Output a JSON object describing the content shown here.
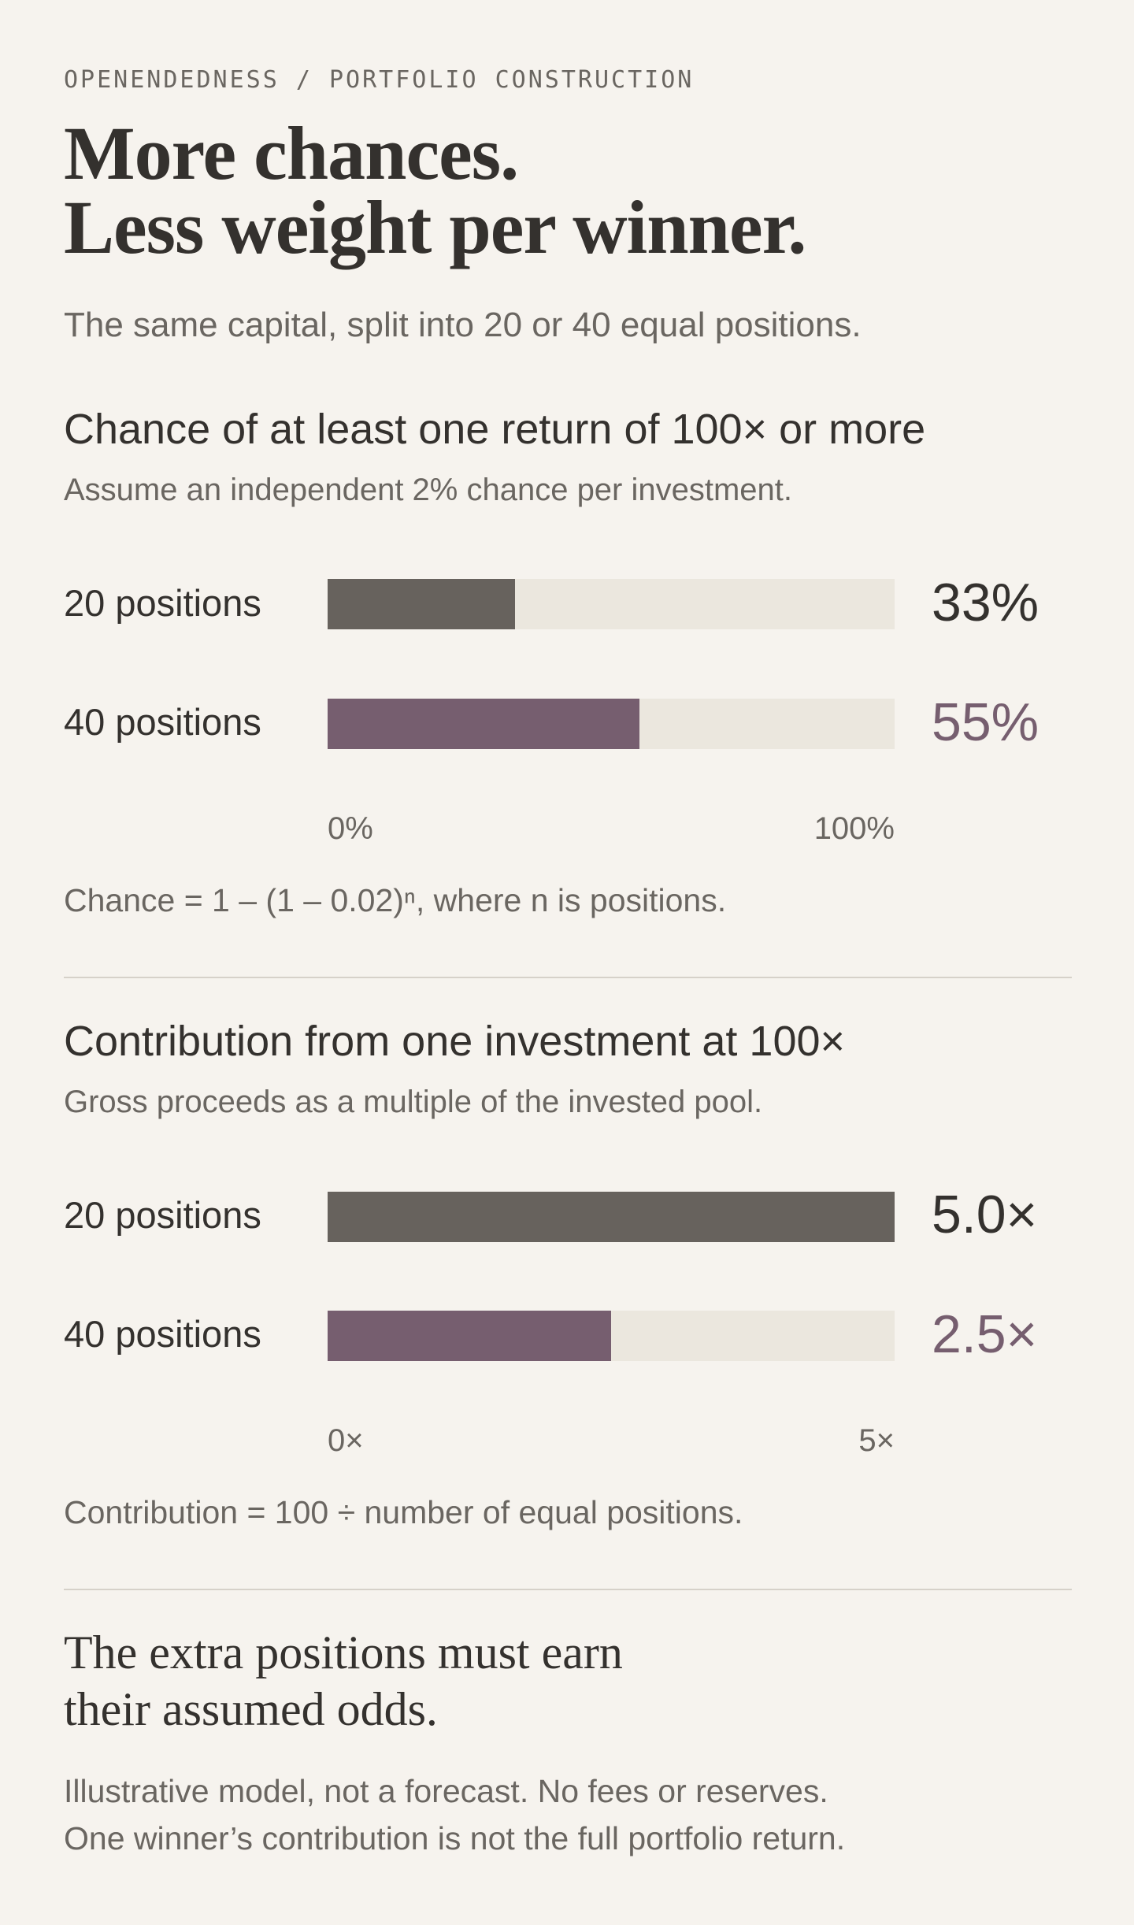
{
  "eyebrow": "OPENENDEDNESS / PORTFOLIO CONSTRUCTION",
  "title": {
    "line1": "More chances.",
    "line2": "Less weight per winner."
  },
  "subtitle": "The same capital, split into 20 or 40 equal positions.",
  "colors": {
    "background": "#f6f3ee",
    "series_20": "#67625d",
    "series_40": "#765e6f",
    "track": "#ebe7de"
  },
  "chart_data": [
    {
      "type": "bar",
      "orientation": "horizontal",
      "title": "Chance of at least one return of 100× or more",
      "subtitle": "Assume an independent 2% chance per investment.",
      "categories": [
        "20 positions",
        "40 positions"
      ],
      "values": [
        33,
        55
      ],
      "value_labels": [
        "33%",
        "55%"
      ],
      "xlim": [
        0,
        100
      ],
      "tick_labels": [
        "0%",
        "100%"
      ],
      "note": "Chance = 1 – (1 – 0.02)ⁿ, where n is positions."
    },
    {
      "type": "bar",
      "orientation": "horizontal",
      "title": "Contribution from one investment at 100×",
      "subtitle": "Gross proceeds as a multiple of the invested pool.",
      "categories": [
        "20 positions",
        "40 positions"
      ],
      "values": [
        5.0,
        2.5
      ],
      "value_labels": [
        "5.0×",
        "2.5×"
      ],
      "xlim": [
        0,
        5
      ],
      "tick_labels": [
        "0×",
        "5×"
      ],
      "note": "Contribution = 100 ÷ number of equal positions."
    }
  ],
  "closing": {
    "line1": "The extra positions must earn",
    "line2": "their assumed odds."
  },
  "footnote": {
    "line1": "Illustrative model, not a forecast. No fees or reserves.",
    "line2": "One winner’s contribution is not the full portfolio return."
  }
}
